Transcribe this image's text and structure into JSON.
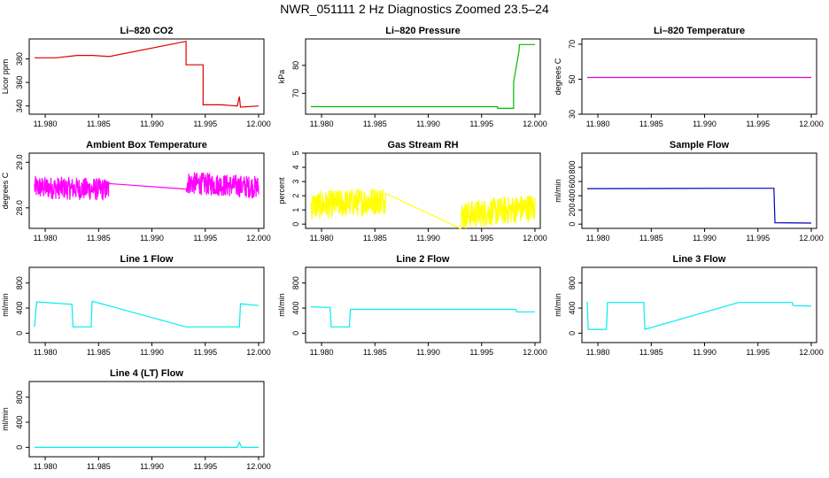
{
  "title": "NWR_051111  2 Hz Diagnostics Zoomed 23.5–24",
  "chart_data": [
    {
      "type": "line",
      "title": "Li–820 CO2",
      "ylabel": "Licor ppm",
      "color": "#dd0000",
      "xlim": [
        11.9785,
        12.0005
      ],
      "xticks": [
        "11.980",
        "11.985",
        "11.990",
        "11.995",
        "12.000"
      ],
      "ylim": [
        333,
        397
      ],
      "yticks": [
        340,
        360,
        380
      ],
      "x": [
        11.979,
        11.981,
        11.983,
        11.9845,
        11.986,
        11.9932,
        11.9932,
        11.9935,
        11.9948,
        11.9948,
        11.9965,
        11.998,
        11.9982,
        11.9983,
        12.0
      ],
      "y": [
        381,
        381,
        383,
        383,
        382,
        395,
        375,
        375,
        375,
        341,
        341,
        340,
        348,
        339,
        340
      ]
    },
    {
      "type": "line",
      "title": "Li–820 Pressure",
      "ylabel": "kPa",
      "color": "#00bb00",
      "xlim": [
        11.9785,
        12.0005
      ],
      "xticks": [
        "11.980",
        "11.985",
        "11.990",
        "11.995",
        "12.000"
      ],
      "ylim": [
        62.5,
        89.5
      ],
      "yticks": [
        70,
        80
      ],
      "x": [
        11.979,
        11.9965,
        11.9965,
        11.998,
        11.998,
        11.9985,
        11.99855,
        12.0
      ],
      "y": [
        65.2,
        65.2,
        64.6,
        64.6,
        74,
        85,
        87.5,
        87.5
      ]
    },
    {
      "type": "line",
      "title": "Li–820 Temperature",
      "ylabel": "degrees C",
      "color": "#dd00dd",
      "xlim": [
        11.9785,
        12.0005
      ],
      "xticks": [
        "11.980",
        "11.985",
        "11.990",
        "11.995",
        "12.000"
      ],
      "ylim": [
        30,
        73
      ],
      "yticks": [
        30,
        50,
        70
      ],
      "x": [
        11.979,
        12.0
      ],
      "y": [
        51,
        51
      ]
    },
    {
      "type": "line",
      "title": "Ambient Box Temperature",
      "ylabel": "degrees C",
      "color": "#ff00ff",
      "noise": 0.25,
      "xlim": [
        11.9785,
        12.0005
      ],
      "xticks": [
        "11.980",
        "11.985",
        "11.990",
        "11.995",
        "12.000"
      ],
      "ylim": [
        27.55,
        29.2
      ],
      "yticks": [
        28.0,
        29.0
      ],
      "yformat": 1,
      "x": [
        11.979,
        11.986,
        11.9932,
        12.0
      ],
      "y": [
        28.45,
        28.4,
        28.55,
        28.45
      ]
    },
    {
      "type": "line",
      "title": "Gas Stream RH",
      "ylabel": "percent",
      "color": "#ffff00",
      "noise": 1.0,
      "xlim": [
        11.9785,
        12.0005
      ],
      "xticks": [
        "11.980",
        "11.985",
        "11.990",
        "11.995",
        "12.000"
      ],
      "ylim": [
        -0.3,
        5.0
      ],
      "yticks": [
        0,
        1,
        2,
        3,
        4,
        5
      ],
      "x": [
        11.979,
        11.986,
        11.993,
        12.0
      ],
      "y": [
        1.3,
        1.7,
        0.6,
        1.2
      ]
    },
    {
      "type": "line",
      "title": "Sample Flow",
      "ylabel": "ml/min",
      "color": "#0000bb",
      "xlim": [
        11.9785,
        12.0005
      ],
      "xticks": [
        "11.980",
        "11.985",
        "11.990",
        "11.995",
        "12.000"
      ],
      "ylim": [
        -60,
        1000
      ],
      "yticks": [
        0,
        200,
        400,
        600,
        800
      ],
      "x": [
        11.979,
        11.993,
        11.9965,
        11.9966,
        12.0
      ],
      "y": [
        500,
        505,
        505,
        20,
        15
      ]
    },
    {
      "type": "line",
      "title": "Line 1 Flow",
      "ylabel": "ml/min",
      "color": "#00eeee",
      "xlim": [
        11.9785,
        12.0005
      ],
      "xticks": [
        "11.980",
        "11.985",
        "11.990",
        "11.995",
        "12.000"
      ],
      "ylim": [
        -150,
        1050
      ],
      "yticks": [
        0,
        400,
        800
      ],
      "x": [
        11.979,
        11.9792,
        11.9825,
        11.9826,
        11.9843,
        11.9844,
        11.9932,
        11.9982,
        11.9983,
        12.0
      ],
      "y": [
        100,
        500,
        460,
        100,
        100,
        510,
        100,
        100,
        470,
        440
      ]
    },
    {
      "type": "line",
      "title": "Line 2 Flow",
      "ylabel": "ml/min",
      "color": "#00eeee",
      "xlim": [
        11.9785,
        12.0005
      ],
      "xticks": [
        "11.980",
        "11.985",
        "11.990",
        "11.995",
        "12.000"
      ],
      "ylim": [
        -150,
        1050
      ],
      "yticks": [
        0,
        400,
        800
      ],
      "x": [
        11.979,
        11.9808,
        11.9809,
        11.9826,
        11.9827,
        11.9982,
        11.9983,
        12.0
      ],
      "y": [
        420,
        410,
        100,
        100,
        380,
        380,
        340,
        340
      ]
    },
    {
      "type": "line",
      "title": "Line 3 Flow",
      "ylabel": "ml/min",
      "color": "#00eeee",
      "xlim": [
        11.9785,
        12.0005
      ],
      "xticks": [
        "11.980",
        "11.985",
        "11.990",
        "11.995",
        "12.000"
      ],
      "ylim": [
        -150,
        1050
      ],
      "yticks": [
        0,
        400,
        800
      ],
      "x": [
        11.979,
        11.9791,
        11.9808,
        11.9809,
        11.9843,
        11.9844,
        11.9932,
        11.9982,
        11.9983,
        12.0
      ],
      "y": [
        500,
        60,
        60,
        490,
        490,
        60,
        490,
        490,
        440,
        430
      ]
    },
    {
      "type": "line",
      "title": "Line 4 (LT) Flow",
      "ylabel": "ml/min",
      "color": "#00eeee",
      "xlim": [
        11.9785,
        12.0005
      ],
      "xticks": [
        "11.980",
        "11.985",
        "11.990",
        "11.995",
        "12.000"
      ],
      "ylim": [
        -150,
        1050
      ],
      "yticks": [
        0,
        400,
        800
      ],
      "x": [
        11.979,
        11.998,
        11.9982,
        11.9984,
        12.0
      ],
      "y": [
        0,
        0,
        80,
        0,
        0
      ]
    }
  ]
}
